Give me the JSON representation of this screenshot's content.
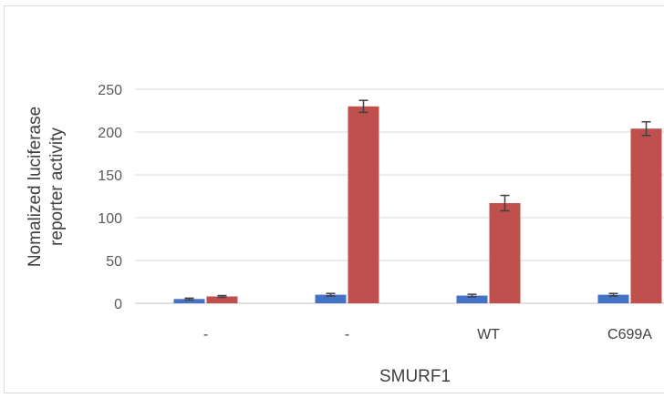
{
  "chart_data": {
    "type": "bar",
    "xlabel": "SMURF1",
    "ylabel_lines": [
      "Nomalized luciferase",
      "reporter activity"
    ],
    "categories": [
      "-",
      "-",
      "WT",
      "C699A"
    ],
    "series": [
      {
        "color": "#4472c4",
        "values": [
          5,
          10,
          9,
          10
        ],
        "errors": [
          1,
          1.5,
          1.5,
          1.5
        ]
      },
      {
        "color": "#c0504d",
        "values": [
          8,
          230,
          117,
          204
        ],
        "errors": [
          1,
          7,
          9,
          8
        ]
      }
    ],
    "ylim": [
      0,
      250
    ],
    "yticks": [
      0,
      50,
      100,
      150,
      200,
      250
    ],
    "grid": true
  }
}
